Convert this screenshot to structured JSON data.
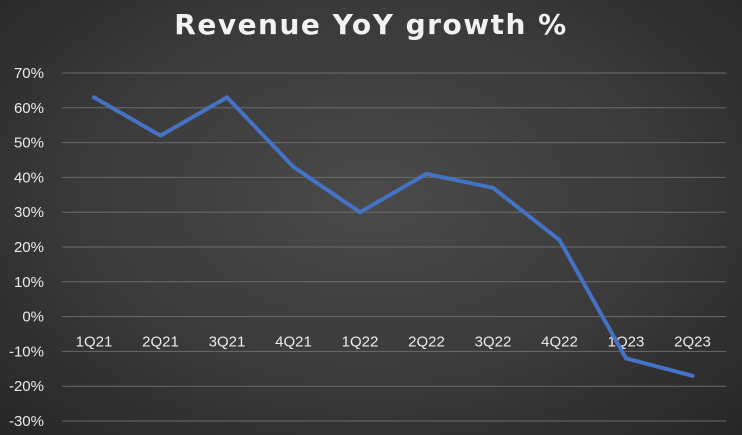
{
  "chart_data": {
    "type": "line",
    "title": "Revenue YoY growth %",
    "categories": [
      "1Q21",
      "2Q21",
      "3Q21",
      "4Q21",
      "1Q22",
      "2Q22",
      "3Q22",
      "4Q22",
      "1Q23",
      "2Q23"
    ],
    "series": [
      {
        "values": [
          63,
          52,
          63,
          43,
          30,
          41,
          37,
          22,
          -12,
          -17
        ],
        "color": "#4472c4"
      }
    ],
    "yticks": [
      "70%",
      "60%",
      "50%",
      "40%",
      "30%",
      "20%",
      "10%",
      "0%",
      "-10%",
      "-20%",
      "-30%"
    ],
    "ylim": [
      -30,
      70
    ],
    "y_tick_step": 10,
    "grid": true,
    "legend": "none",
    "colors": {
      "line": "#4472c4",
      "background": "#3d3d3d",
      "text": "#eaeaea",
      "grid": "#6a6a6a"
    }
  }
}
